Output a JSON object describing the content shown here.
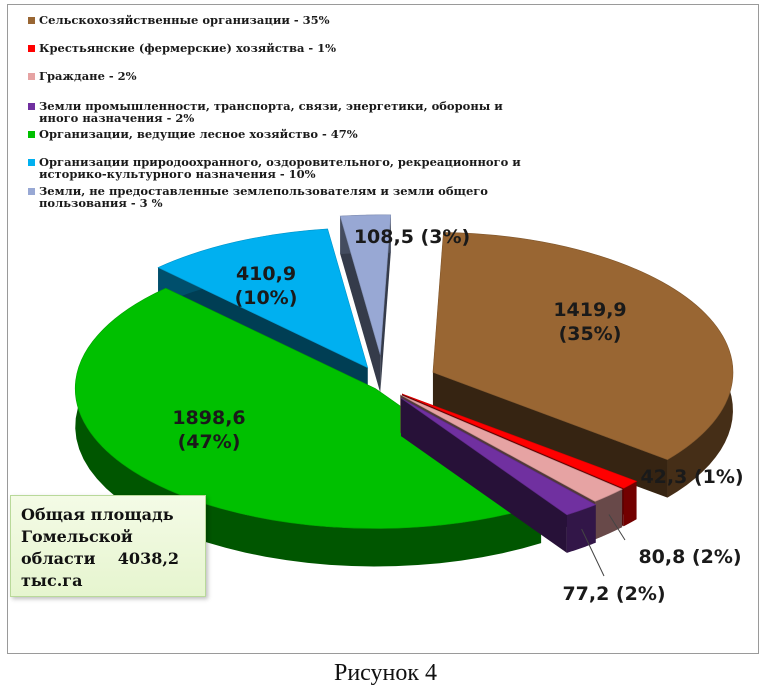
{
  "chart_data": {
    "type": "pie",
    "legend_position": "top",
    "categories": [
      "Сельскохозяйственные организации - 35%",
      "Крестьянские (фермерские) хозяйства - 1%",
      "Граждане - 2%",
      "Земли промышленности, транспорта, связи, энергетики, обороны и иного назначения - 2%",
      "Организации, ведущие лесное хозяйство - 47%",
      "Организации природоохранного, оздоровительного, рекреационного и историко-культурного назначения - 10%",
      "Земли, не предоставленные землепользователям и земли общего пользования - 3 %"
    ],
    "values": [
      1419.9,
      42.3,
      80.8,
      77.2,
      1898.6,
      410.9,
      108.5
    ],
    "data_labels": [
      "1419,9 (35%)",
      "42,3 (1%)",
      "80,8 (2%)",
      "77,2 (2%)",
      "1898,6 (47%)",
      "410,9 (10%)",
      "108,5 (3%)"
    ],
    "colors": [
      "#996633",
      "#ff0000",
      "#e6a3a3",
      "#7030a0",
      "#00c000",
      "#00b0f0",
      "#98a8d4"
    ]
  },
  "legend_lines": [
    [
      "Сельскохозяйственные организации - 35%"
    ],
    [
      "Крестьянские (фермерские) хозяйства - 1%"
    ],
    [
      "Граждане - 2%"
    ],
    [
      "Земли промышленности, транспорта, связи,  энергетики, обороны и",
      "иного назначения - 2%"
    ],
    [
      "Организации, ведущие лесное хозяйство  - 47%"
    ],
    [
      "Организации природоохранного, оздоровительного, рекреационного и",
      "историко-культурного назначения - 10%"
    ],
    [
      "Земли, не предоставленные землепользователям и земли общего",
      "пользования - 3 %"
    ]
  ],
  "total_box": [
    "Общая  площадь",
    "Гомельской",
    "области    4038,2",
    "тыс.га"
  ],
  "caption": "Рисунок 4"
}
